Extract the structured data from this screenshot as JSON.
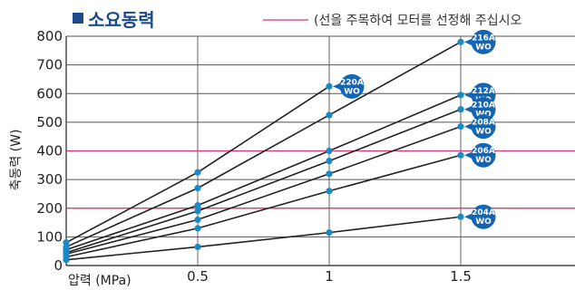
{
  "header": {
    "title": "소요동력",
    "note": "(선을 주목하여 모터를 선정해 주십시오"
  },
  "colors": {
    "title": "#1d4a8c",
    "series_line": "#222222",
    "marker": "#1a8ac6",
    "badge": "#1565b5",
    "reference_line": "#e0356e",
    "grid": "#555555"
  },
  "chart_data": {
    "type": "line",
    "xlabel": "압력 (MPa)",
    "ylabel": "축동력 (W)",
    "xlim": [
      0,
      2
    ],
    "ylim": [
      0,
      800
    ],
    "x_ticks": [
      "0.5",
      "1",
      "1.5"
    ],
    "y_ticks": [
      "0",
      "100",
      "200",
      "300",
      "400",
      "500",
      "600",
      "700",
      "800"
    ],
    "grid": true,
    "reference_lines": [
      200,
      400
    ],
    "series": [
      {
        "name": "220A WO",
        "x": [
          0,
          0.5,
          1
        ],
        "values": [
          80,
          325,
          625
        ]
      },
      {
        "name": "216A WO",
        "x": [
          0,
          0.5,
          1,
          1.5
        ],
        "values": [
          65,
          270,
          525,
          780
        ]
      },
      {
        "name": "212A WO",
        "x": [
          0,
          0.5,
          1,
          1.5
        ],
        "values": [
          55,
          210,
          400,
          595
        ]
      },
      {
        "name": "210A WO",
        "x": [
          0,
          0.5,
          1,
          1.5
        ],
        "values": [
          45,
          190,
          365,
          545
        ]
      },
      {
        "name": "208A WO",
        "x": [
          0,
          0.5,
          1,
          1.5
        ],
        "values": [
          40,
          160,
          320,
          485
        ]
      },
      {
        "name": "206A WO",
        "x": [
          0,
          0.5,
          1,
          1.5
        ],
        "values": [
          30,
          130,
          260,
          385
        ]
      },
      {
        "name": "204A WO",
        "x": [
          0,
          0.5,
          1,
          1.5
        ],
        "values": [
          20,
          65,
          115,
          170
        ]
      }
    ]
  }
}
